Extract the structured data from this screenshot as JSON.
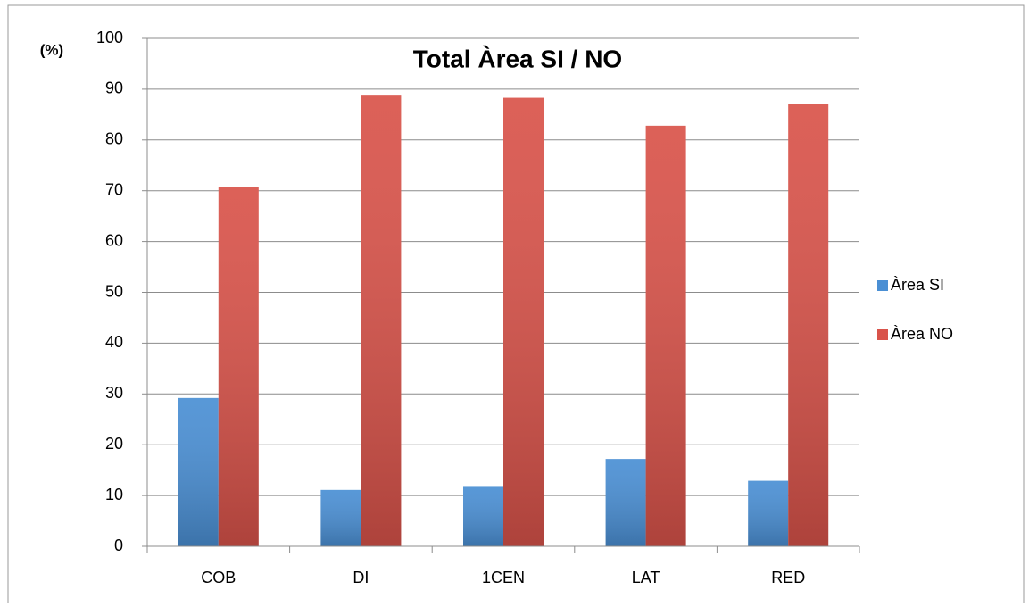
{
  "chart_data": {
    "type": "bar",
    "title": "Total Àrea SI / NO",
    "y_label": "(%)",
    "categories": [
      "COB",
      "DI",
      "1CEN",
      "LAT",
      "RED"
    ],
    "series": [
      {
        "name": "Àrea SI",
        "color": "#4a8fd4",
        "values": [
          29.2,
          11.1,
          11.7,
          17.2,
          12.9
        ]
      },
      {
        "name": "Àrea NO",
        "color": "#d9534a",
        "values": [
          70.8,
          88.9,
          88.3,
          82.8,
          87.1
        ]
      }
    ],
    "ylim": [
      0,
      100
    ],
    "yticks": [
      0,
      10,
      20,
      30,
      40,
      50,
      60,
      70,
      80,
      90,
      100
    ],
    "grid": true,
    "legend": "right"
  }
}
